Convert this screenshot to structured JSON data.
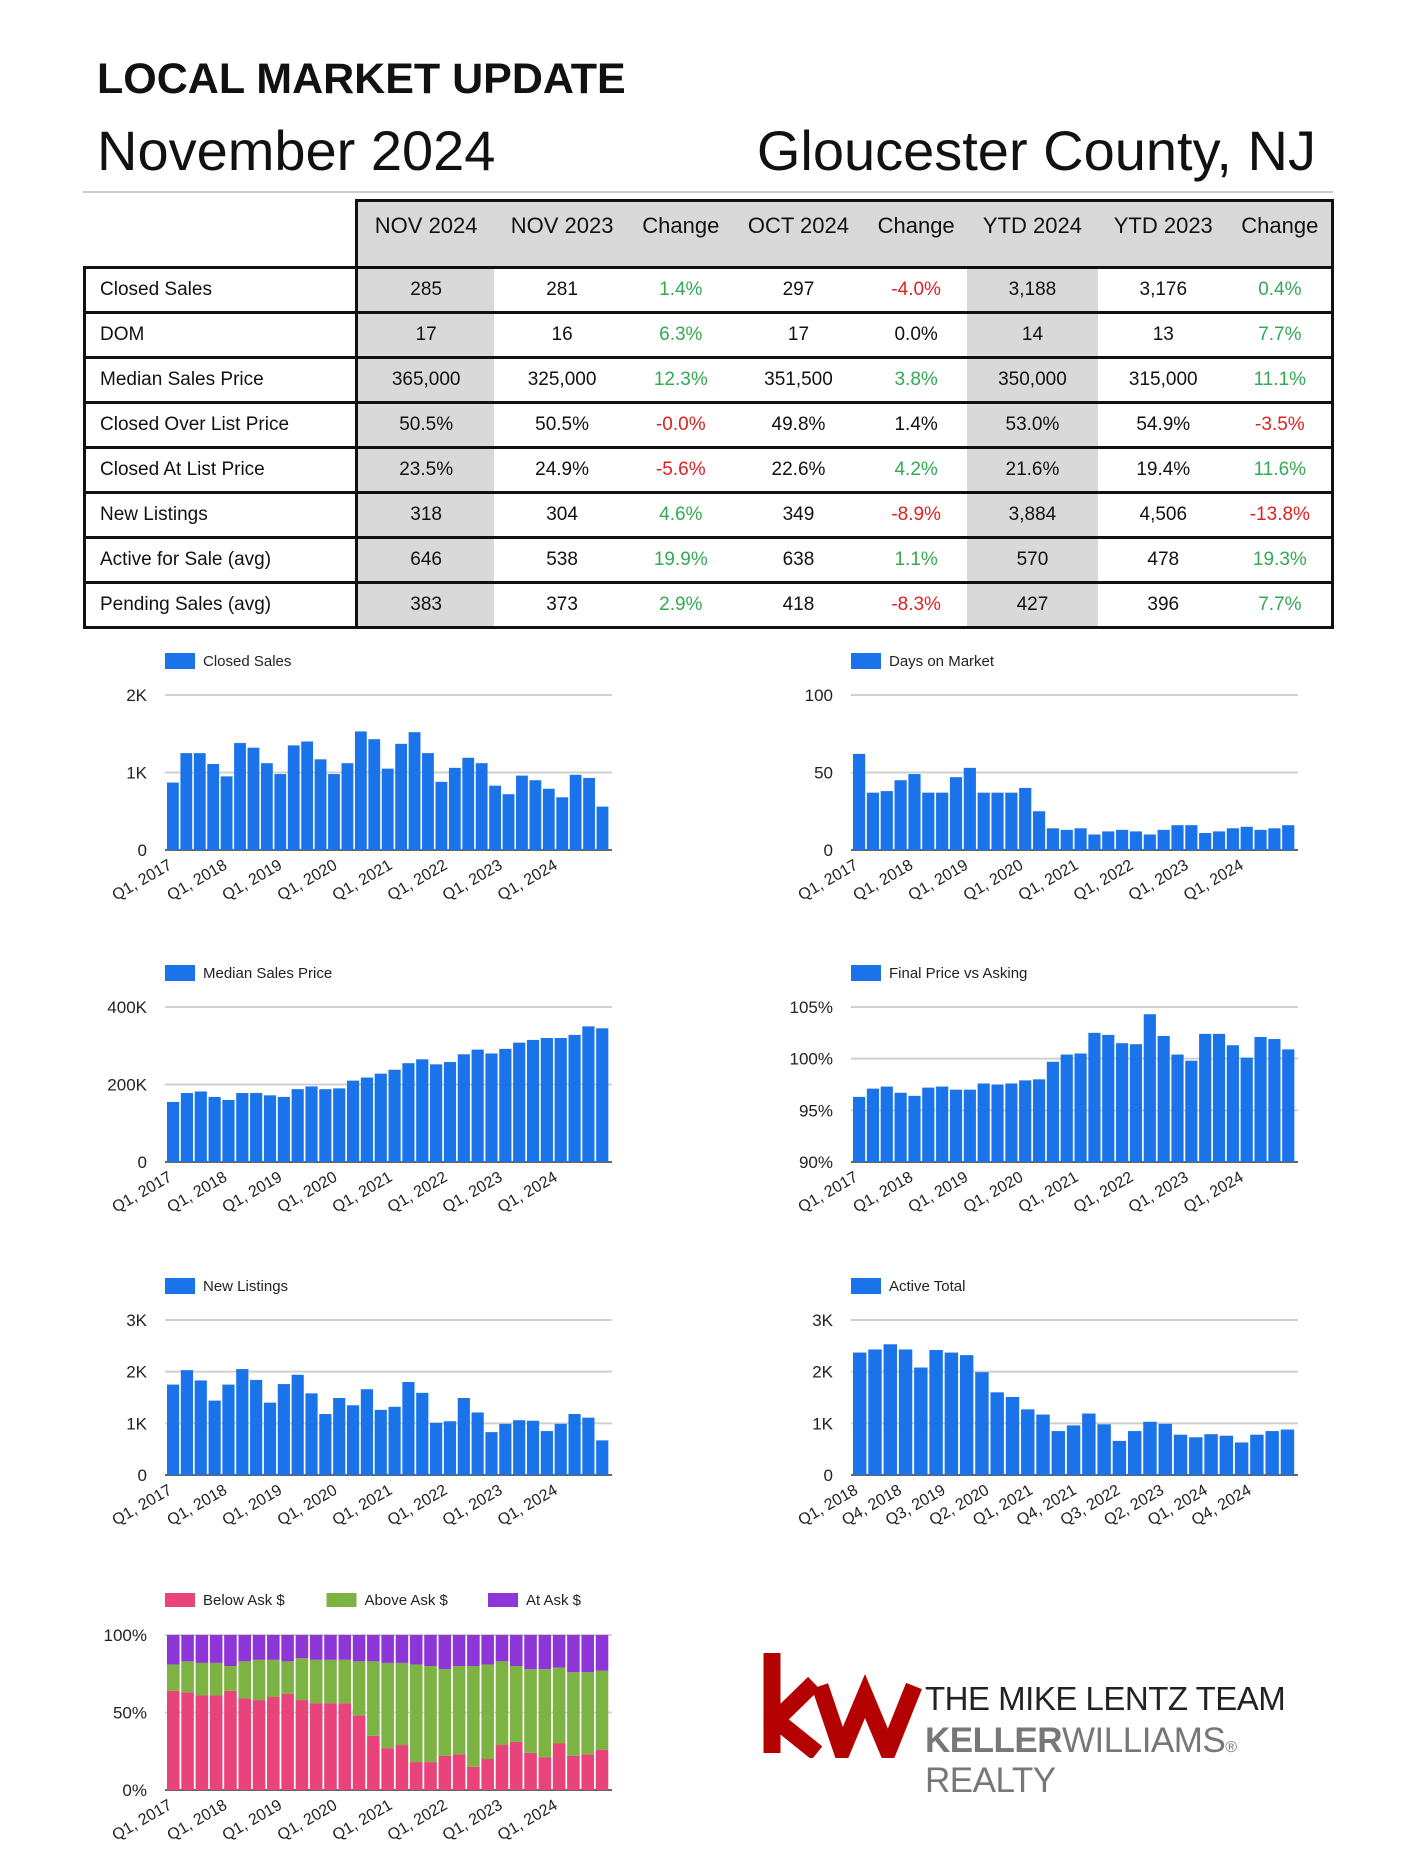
{
  "header": {
    "title": "LOCAL MARKET UPDATE",
    "date": "November 2024",
    "location": "Gloucester County, NJ"
  },
  "table": {
    "columns": [
      "NOV 2024",
      "NOV 2023",
      "Change",
      "OCT 2024",
      "Change",
      "YTD 2024",
      "YTD 2023",
      "Change"
    ],
    "rows": [
      {
        "label": "Closed Sales",
        "values": [
          "285",
          "281",
          "1.4%",
          "297",
          "-4.0%",
          "3,188",
          "3,176",
          "0.4%"
        ]
      },
      {
        "label": "DOM",
        "values": [
          "17",
          "16",
          "6.3%",
          "17",
          "0.0%",
          "14",
          "13",
          "7.7%"
        ]
      },
      {
        "label": "Median Sales Price",
        "values": [
          "365,000",
          "325,000",
          "12.3%",
          "351,500",
          "3.8%",
          "350,000",
          "315,000",
          "11.1%"
        ]
      },
      {
        "label": "Closed Over List Price",
        "values": [
          "50.5%",
          "50.5%",
          "-0.0%",
          "49.8%",
          "1.4%",
          "53.0%",
          "54.9%",
          "-3.5%"
        ]
      },
      {
        "label": "Closed At List Price",
        "values": [
          "23.5%",
          "24.9%",
          "-5.6%",
          "22.6%",
          "4.2%",
          "21.6%",
          "19.4%",
          "11.6%"
        ]
      },
      {
        "label": "New Listings",
        "values": [
          "318",
          "304",
          "4.6%",
          "349",
          "-8.9%",
          "3,884",
          "4,506",
          "-13.8%"
        ]
      },
      {
        "label": "Active for Sale (avg)",
        "values": [
          "646",
          "538",
          "19.9%",
          "638",
          "1.1%",
          "570",
          "478",
          "19.3%"
        ]
      },
      {
        "label": "Pending Sales (avg)",
        "values": [
          "383",
          "373",
          "2.9%",
          "418",
          "-8.3%",
          "427",
          "396",
          "7.7%"
        ]
      }
    ]
  },
  "colors": {
    "bar": "#1a73e8",
    "positive": "#34a853",
    "negative": "#e02020",
    "shade": "#d9d9d9",
    "below_ask": "#e8437a",
    "above_ask": "#7cb342",
    "at_ask": "#8e35d8",
    "logo_red": "#b40101"
  },
  "chart_data": [
    {
      "type": "bar",
      "legend": "Closed Sales",
      "x_ticks": [
        "Q1, 2017",
        "Q1, 2018",
        "Q1, 2019",
        "Q1, 2020",
        "Q1, 2021",
        "Q1, 2022",
        "Q1, 2023",
        "Q1, 2024"
      ],
      "y_ticks": [
        "2K",
        "1K",
        "0"
      ],
      "ylim": [
        0,
        2000
      ],
      "values": [
        870,
        1250,
        1250,
        1110,
        950,
        1380,
        1320,
        1120,
        980,
        1350,
        1400,
        1170,
        980,
        1120,
        1530,
        1430,
        1050,
        1370,
        1520,
        1250,
        880,
        1060,
        1190,
        1120,
        830,
        720,
        960,
        900,
        790,
        680,
        970,
        930,
        560
      ]
    },
    {
      "type": "bar",
      "legend": "Days on Market",
      "x_ticks": [
        "Q1, 2017",
        "Q1, 2018",
        "Q1, 2019",
        "Q1, 2020",
        "Q1, 2021",
        "Q1, 2022",
        "Q1, 2023",
        "Q1, 2024"
      ],
      "y_ticks": [
        "100",
        "50",
        "0"
      ],
      "ylim": [
        0,
        100
      ],
      "values": [
        62,
        37,
        38,
        45,
        49,
        37,
        37,
        47,
        53,
        37,
        37,
        37,
        40,
        25,
        14,
        13,
        14,
        10,
        12,
        13,
        12,
        10,
        13,
        16,
        16,
        11,
        12,
        14,
        15,
        13,
        14,
        16
      ]
    },
    {
      "type": "bar",
      "legend": "Median Sales Price",
      "x_ticks": [
        "Q1, 2017",
        "Q1, 2018",
        "Q1, 2019",
        "Q1, 2020",
        "Q1, 2021",
        "Q1, 2022",
        "Q1, 2023",
        "Q1, 2024"
      ],
      "y_ticks": [
        "400K",
        "200K",
        "0"
      ],
      "ylim": [
        0,
        400000
      ],
      "values": [
        155000,
        178000,
        182000,
        168000,
        160000,
        178000,
        178000,
        172000,
        168000,
        188000,
        195000,
        188000,
        190000,
        210000,
        218000,
        228000,
        238000,
        255000,
        265000,
        252000,
        258000,
        278000,
        290000,
        280000,
        292000,
        308000,
        315000,
        320000,
        320000,
        328000,
        350000,
        345000
      ]
    },
    {
      "type": "bar",
      "legend": "Final Price vs Asking",
      "x_ticks": [
        "Q1, 2017",
        "Q1, 2018",
        "Q1, 2019",
        "Q1, 2020",
        "Q1, 2021",
        "Q1, 2022",
        "Q1, 2023",
        "Q1, 2024"
      ],
      "y_ticks": [
        "105%",
        "100%",
        "95%",
        "90%"
      ],
      "ylim": [
        90,
        105
      ],
      "values": [
        96.3,
        97.1,
        97.3,
        96.7,
        96.4,
        97.2,
        97.3,
        97.0,
        97.0,
        97.6,
        97.5,
        97.6,
        97.9,
        98.0,
        99.7,
        100.4,
        100.5,
        102.5,
        102.3,
        101.5,
        101.4,
        104.3,
        102.2,
        100.4,
        99.8,
        102.4,
        102.4,
        101.3,
        100.1,
        102.1,
        101.9,
        100.9
      ]
    },
    {
      "type": "bar",
      "legend": "New Listings",
      "x_ticks": [
        "Q1, 2017",
        "Q1, 2018",
        "Q1, 2019",
        "Q1, 2020",
        "Q1, 2021",
        "Q1, 2022",
        "Q1, 2023",
        "Q1, 2024"
      ],
      "y_ticks": [
        "3K",
        "2K",
        "1K",
        "0"
      ],
      "ylim": [
        0,
        3000
      ],
      "values": [
        1750,
        2030,
        1830,
        1440,
        1750,
        2050,
        1840,
        1400,
        1760,
        1940,
        1580,
        1180,
        1490,
        1350,
        1660,
        1260,
        1320,
        1800,
        1590,
        1010,
        1040,
        1490,
        1210,
        830,
        990,
        1060,
        1050,
        850,
        990,
        1180,
        1110,
        670
      ]
    },
    {
      "type": "bar",
      "legend": "Active Total",
      "x_ticks": [
        "Q1, 2018",
        "Q4, 2018",
        "Q3, 2019",
        "Q2, 2020",
        "Q1, 2021",
        "Q4, 2021",
        "Q3, 2022",
        "Q2, 2023",
        "Q1, 2024",
        "Q4, 2024"
      ],
      "y_ticks": [
        "3K",
        "2K",
        "1K",
        "0"
      ],
      "ylim": [
        0,
        3000
      ],
      "values": [
        2370,
        2430,
        2530,
        2430,
        2080,
        2420,
        2370,
        2320,
        1990,
        1600,
        1510,
        1270,
        1170,
        850,
        960,
        1190,
        980,
        660,
        850,
        1030,
        990,
        780,
        730,
        790,
        760,
        630,
        780,
        850,
        880
      ]
    },
    {
      "type": "bar",
      "stacked": true,
      "x_ticks": [
        "Q1, 2017",
        "Q1, 2018",
        "Q1, 2019",
        "Q1, 2020",
        "Q1, 2021",
        "Q1, 2022",
        "Q1, 2023",
        "Q1, 2024"
      ],
      "y_ticks": [
        "100%",
        "50%",
        "0%"
      ],
      "ylim": [
        0,
        100
      ],
      "series": [
        {
          "name": "Below Ask $",
          "values": [
            64,
            63,
            61,
            61,
            64,
            59,
            58,
            60,
            62,
            58,
            56,
            56,
            56,
            48,
            35,
            27,
            29,
            18,
            18,
            22,
            23,
            15,
            20,
            29,
            31,
            24,
            21,
            30,
            22,
            23,
            26
          ]
        },
        {
          "name": "Above Ask $",
          "values": [
            17,
            20,
            21,
            21,
            16,
            24,
            26,
            24,
            21,
            27,
            28,
            28,
            28,
            35,
            48,
            55,
            53,
            63,
            62,
            56,
            57,
            65,
            61,
            54,
            49,
            54,
            57,
            49,
            54,
            53,
            51
          ]
        },
        {
          "name": "At Ask $",
          "values": [
            19,
            17,
            18,
            18,
            20,
            17,
            16,
            16,
            17,
            15,
            16,
            16,
            16,
            17,
            17,
            18,
            18,
            19,
            20,
            22,
            20,
            20,
            19,
            17,
            20,
            22,
            22,
            21,
            24,
            24,
            23
          ]
        }
      ]
    }
  ],
  "logo": {
    "team": "THE MIKE LENTZ TEAM",
    "brand_bold": "KELLER",
    "brand_rest": "WILLIAMS",
    "brand_tail": " REALTY"
  }
}
